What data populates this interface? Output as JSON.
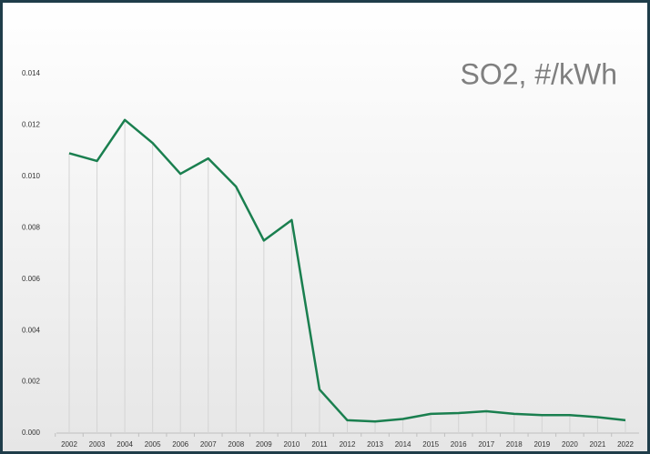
{
  "chart_data": {
    "type": "line",
    "title": "SO2, #/kWh",
    "categories": [
      "2002",
      "2003",
      "2004",
      "2005",
      "2006",
      "2007",
      "2008",
      "2009",
      "2010",
      "2011",
      "2012",
      "2013",
      "2014",
      "2015",
      "2016",
      "2017",
      "2018",
      "2019",
      "2020",
      "2021",
      "2022"
    ],
    "series": [
      {
        "name": "SO2",
        "color": "#1a7f4f",
        "values": [
          0.0109,
          0.0106,
          0.0122,
          0.0113,
          0.0101,
          0.0107,
          0.0096,
          0.0075,
          0.0083,
          0.0017,
          0.0005,
          0.00045,
          0.00055,
          0.00075,
          0.00078,
          0.00085,
          0.00075,
          0.0007,
          0.0007,
          0.00062,
          0.0005
        ]
      }
    ],
    "ylim": [
      0,
      0.014
    ],
    "yticks": [
      {
        "value": 0,
        "label": "0.000"
      },
      0.002,
      0.004,
      0.006,
      0.008,
      {
        "value": 0.01,
        "label": "0.010"
      },
      {
        "value": 0.012,
        "label": "0.012"
      },
      {
        "value": 0.014,
        "label": "0.014"
      }
    ],
    "grid": false
  }
}
